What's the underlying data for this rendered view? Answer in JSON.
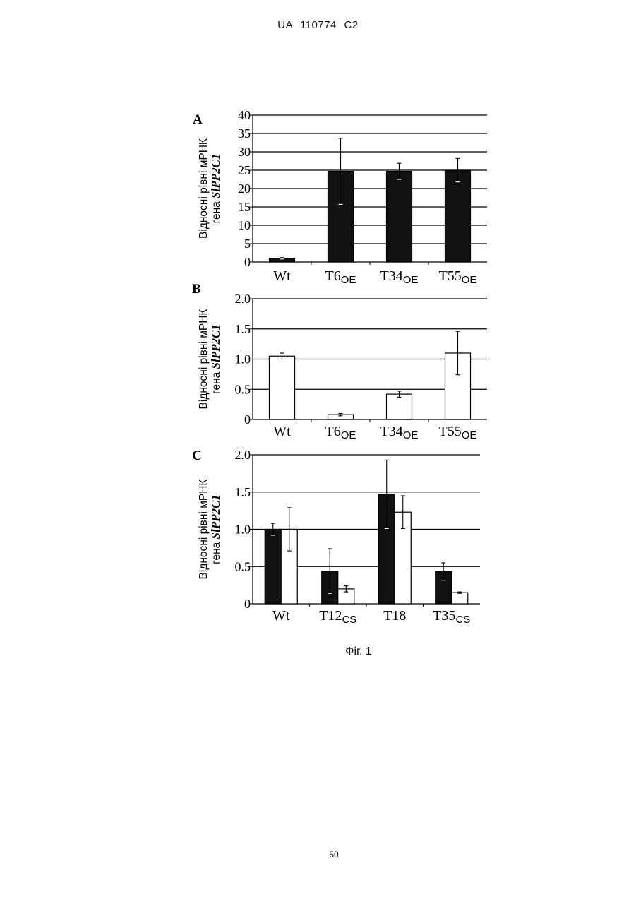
{
  "header": {
    "text": "UA 110774 C2"
  },
  "footer": {
    "page_number": "50"
  },
  "caption": "Фіг. 1",
  "colors": {
    "filled_bar": "#111111",
    "open_bar": "#ffffff",
    "axis": "#000000"
  },
  "chart_data": [
    {
      "type": "bar",
      "panel_label": "A",
      "ylabel_line1": "Відносні рівні мРНК",
      "ylabel_line2_prefix": "гена ",
      "ylabel_line2_gene": "SlPP2C1",
      "ylim": [
        0,
        40
      ],
      "yticks": [
        "0",
        "5",
        "10",
        "15",
        "20",
        "25",
        "30",
        "35",
        "40"
      ],
      "ytick_values": [
        0,
        5,
        10,
        15,
        20,
        25,
        30,
        35,
        40
      ],
      "grid": true,
      "categories": [
        {
          "main": "Wt",
          "sub": ""
        },
        {
          "main": "T6",
          "sub": "OE"
        },
        {
          "main": "T34",
          "sub": "OE"
        },
        {
          "main": "T55",
          "sub": "OE"
        }
      ],
      "series": [
        {
          "fill": "filled",
          "values": [
            1.0,
            24.7,
            24.7,
            25.0
          ],
          "errors": [
            0.2,
            9.0,
            2.2,
            3.2
          ]
        }
      ]
    },
    {
      "type": "bar",
      "panel_label": "B",
      "ylabel_line1": "Відносні рівні мРНК",
      "ylabel_line2_prefix": "гена ",
      "ylabel_line2_gene": "SlPP2C1",
      "ylim": [
        0,
        2.0
      ],
      "yticks": [
        "0",
        "0.5",
        "1.0",
        "1.5",
        "2.0"
      ],
      "ytick_values": [
        0,
        0.5,
        1.0,
        1.5,
        2.0
      ],
      "grid": true,
      "categories": [
        {
          "main": "Wt",
          "sub": ""
        },
        {
          "main": "T6",
          "sub": "OE"
        },
        {
          "main": "T34",
          "sub": "OE"
        },
        {
          "main": "T55",
          "sub": "OE"
        }
      ],
      "series": [
        {
          "fill": "open",
          "values": [
            1.05,
            0.08,
            0.42,
            1.1
          ],
          "errors": [
            0.05,
            0.02,
            0.05,
            0.36
          ]
        }
      ]
    },
    {
      "type": "bar",
      "panel_label": "C",
      "ylabel_line1": "Відносні рівні мРНК",
      "ylabel_line2_prefix": "гена ",
      "ylabel_line2_gene": "SlPP2C1",
      "ylim": [
        0,
        2.0
      ],
      "yticks": [
        "0",
        "0.5",
        "1.0",
        "1.5",
        "2.0"
      ],
      "ytick_values": [
        0,
        0.5,
        1.0,
        1.5,
        2.0
      ],
      "grid": true,
      "categories": [
        {
          "main": "Wt",
          "sub": ""
        },
        {
          "main": "T12",
          "sub": "CS"
        },
        {
          "main": "T18",
          "sub": ""
        },
        {
          "main": "T35",
          "sub": "CS"
        }
      ],
      "series": [
        {
          "fill": "filled",
          "values": [
            1.0,
            0.44,
            1.47,
            0.43
          ],
          "errors": [
            0.08,
            0.3,
            0.46,
            0.12
          ]
        },
        {
          "fill": "open",
          "values": [
            1.0,
            0.2,
            1.23,
            0.15
          ],
          "errors": [
            0.29,
            0.04,
            0.22,
            0.01
          ]
        }
      ]
    }
  ]
}
